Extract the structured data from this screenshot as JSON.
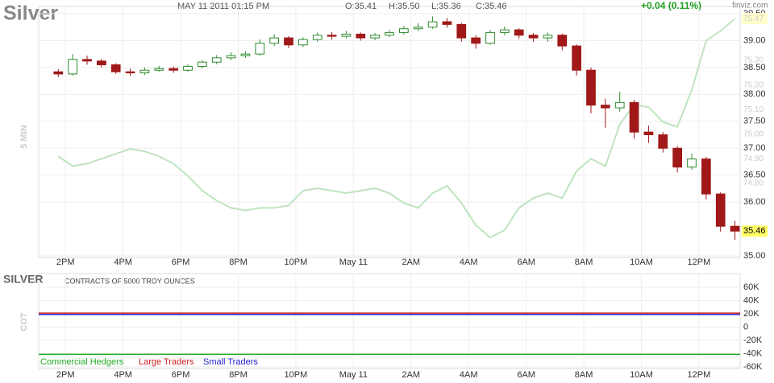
{
  "header": {
    "symbol": "Silver",
    "datetime": "MAY 11 2011 01:15 PM",
    "open": "O:35.41",
    "high": "H:35.50",
    "low": "L:35.36",
    "close": "C:35.46",
    "change": "+0.04 (0.11%)",
    "source": "finviz.com",
    "timeframe": "5 MIN"
  },
  "chart_data": [
    {
      "type": "candlestick",
      "x": [
        13.75,
        14.25,
        14.75,
        15.25,
        15.75,
        16.25,
        16.75,
        17.25,
        17.75,
        18.25,
        18.75,
        19.25,
        19.75,
        20.25,
        20.75,
        21.25,
        21.75,
        22.25,
        22.75,
        23.25,
        23.75,
        24.25,
        24.75,
        25.25,
        25.75,
        26.25,
        26.75,
        27.25,
        27.75,
        28.25,
        28.75,
        29.25,
        29.75,
        30.25,
        30.75,
        31.25,
        31.75,
        32.25,
        32.75,
        33.25,
        33.75,
        34.25,
        34.75,
        35.25,
        35.75,
        36.25,
        36.75,
        37.25
      ],
      "open": [
        38.42,
        38.38,
        38.65,
        38.62,
        38.55,
        38.42,
        38.4,
        38.45,
        38.48,
        38.45,
        38.52,
        38.6,
        38.68,
        38.72,
        38.75,
        38.95,
        39.05,
        38.92,
        39.02,
        39.1,
        39.08,
        39.12,
        39.05,
        39.1,
        39.15,
        39.22,
        39.25,
        39.35,
        39.3,
        39.05,
        38.95,
        39.15,
        39.2,
        39.1,
        39.05,
        39.1,
        38.9,
        38.45,
        37.8,
        37.75,
        37.85,
        37.3,
        37.25,
        37.0,
        36.65,
        36.8,
        36.15,
        35.55
      ],
      "high": [
        38.47,
        38.75,
        38.72,
        38.66,
        38.58,
        38.48,
        38.5,
        38.53,
        38.52,
        38.56,
        38.64,
        38.73,
        38.78,
        38.8,
        39.02,
        39.12,
        39.08,
        39.06,
        39.15,
        39.16,
        39.18,
        39.15,
        39.14,
        39.2,
        39.27,
        39.32,
        39.45,
        39.42,
        39.33,
        39.1,
        39.2,
        39.26,
        39.23,
        39.14,
        39.15,
        39.13,
        38.93,
        38.5,
        37.92,
        38.05,
        37.9,
        37.42,
        37.3,
        37.04,
        36.9,
        36.84,
        36.18,
        35.65
      ],
      "low": [
        38.32,
        38.35,
        38.55,
        38.5,
        38.38,
        38.34,
        38.36,
        38.42,
        38.4,
        38.42,
        38.48,
        38.56,
        38.64,
        38.68,
        38.72,
        38.9,
        38.86,
        38.88,
        38.98,
        39.02,
        39.04,
        39.0,
        39.01,
        39.06,
        39.11,
        39.18,
        39.22,
        39.24,
        38.98,
        38.85,
        38.92,
        39.1,
        39.04,
        38.98,
        38.98,
        38.82,
        38.35,
        37.65,
        37.38,
        37.68,
        37.18,
        37.1,
        36.92,
        36.55,
        36.6,
        36.05,
        35.45,
        35.3
      ],
      "close": [
        38.38,
        38.65,
        38.62,
        38.55,
        38.42,
        38.4,
        38.45,
        38.48,
        38.45,
        38.52,
        38.6,
        38.68,
        38.72,
        38.75,
        38.95,
        39.05,
        38.92,
        39.02,
        39.1,
        39.08,
        39.12,
        39.05,
        39.1,
        39.15,
        39.22,
        39.25,
        39.35,
        39.3,
        39.05,
        38.95,
        39.15,
        39.2,
        39.1,
        39.05,
        39.1,
        38.9,
        38.45,
        37.8,
        37.75,
        37.85,
        37.3,
        37.25,
        37.0,
        36.65,
        36.8,
        36.15,
        35.55,
        35.46
      ],
      "up_color": "#2e8b2e",
      "down_color": "#a01818",
      "overlay": {
        "axis": "y2",
        "color": "#bfe3bf",
        "values": [
          74.91,
          74.87,
          74.88,
          74.9,
          74.92,
          74.94,
          74.93,
          74.91,
          74.88,
          74.83,
          74.77,
          74.73,
          74.7,
          74.69,
          74.7,
          74.7,
          74.71,
          74.77,
          74.78,
          74.77,
          74.76,
          74.77,
          74.78,
          74.76,
          74.72,
          74.7,
          74.76,
          74.79,
          74.72,
          74.63,
          74.58,
          74.61,
          74.7,
          74.74,
          74.76,
          74.74,
          74.85,
          74.9,
          74.87,
          75.04,
          75.12,
          75.11,
          75.05,
          75.03,
          75.18,
          75.38,
          75.42,
          75.47
        ]
      },
      "xlim": [
        13.07,
        37.43
      ],
      "xticks": [
        {
          "value": 14,
          "label": "2PM"
        },
        {
          "value": 16,
          "label": "4PM"
        },
        {
          "value": 18,
          "label": "6PM"
        },
        {
          "value": 20,
          "label": "8PM"
        },
        {
          "value": 22,
          "label": "10PM"
        },
        {
          "value": 24,
          "label": "May 11"
        },
        {
          "value": 26,
          "label": "2AM"
        },
        {
          "value": 28,
          "label": "4AM"
        },
        {
          "value": 30,
          "label": "6AM"
        },
        {
          "value": 32,
          "label": "8AM"
        },
        {
          "value": 34,
          "label": "10AM"
        },
        {
          "value": 36,
          "label": "12PM"
        }
      ],
      "ylim": [
        35.0,
        39.5
      ],
      "yticks": [
        {
          "value": 39.5,
          "label": "39.50"
        },
        {
          "value": 39,
          "label": "39.00"
        },
        {
          "value": 38.5,
          "label": "38.50"
        },
        {
          "value": 38,
          "label": "38.00"
        },
        {
          "value": 37.5,
          "label": "37.50"
        },
        {
          "value": 37,
          "label": "37.00"
        },
        {
          "value": 36.5,
          "label": "36.50"
        },
        {
          "value": 36,
          "label": "36.00"
        },
        {
          "value": 35,
          "label": "35.00"
        }
      ],
      "y2lim": [
        74.505,
        75.49
      ],
      "y2ticks": [
        {
          "value": 75.3,
          "label": "75.30"
        },
        {
          "value": 75.2,
          "label": "75.20"
        },
        {
          "value": 75.1,
          "label": "75.10"
        },
        {
          "value": 75,
          "label": "75.00"
        },
        {
          "value": 74.9,
          "label": "74.90"
        },
        {
          "value": 74.8,
          "label": "74.80"
        }
      ],
      "grid": true
    },
    {
      "type": "line",
      "title": "SILVER",
      "subtitle": "CONTRACTS OF 5000 TROY OUNCES",
      "ylabel": "COT",
      "x": [
        13.07,
        37.43
      ],
      "series": [
        {
          "name": "Commercial Hedgers",
          "color": "#22aa22",
          "values": [
            -41000,
            -41000
          ]
        },
        {
          "name": "Large Traders",
          "color": "#cc2222",
          "values": [
            21000,
            21000
          ]
        },
        {
          "name": "Small Traders",
          "color": "#2222cc",
          "values": [
            19000,
            19000
          ]
        }
      ],
      "xlim": [
        13.07,
        37.43
      ],
      "xticks": [
        {
          "value": 14,
          "label": "2PM"
        },
        {
          "value": 16,
          "label": "4PM"
        },
        {
          "value": 18,
          "label": "6PM"
        },
        {
          "value": 20,
          "label": "8PM"
        },
        {
          "value": 22,
          "label": "10PM"
        },
        {
          "value": 24,
          "label": "May 11"
        },
        {
          "value": 26,
          "label": "2AM"
        },
        {
          "value": 28,
          "label": "4AM"
        },
        {
          "value": 30,
          "label": "6AM"
        },
        {
          "value": 32,
          "label": "8AM"
        },
        {
          "value": 34,
          "label": "10AM"
        },
        {
          "value": 36,
          "label": "12PM"
        }
      ],
      "ylim": [
        -60000,
        60000
      ],
      "yticks": [
        {
          "value": 60000,
          "label": "60K"
        },
        {
          "value": 40000,
          "label": "40K"
        },
        {
          "value": 20000,
          "label": "20K"
        },
        0,
        {
          "value": -20000,
          "label": "-20K"
        },
        {
          "value": -40000,
          "label": "-40K"
        },
        {
          "value": -60000,
          "label": "-60K"
        }
      ],
      "grid": true
    }
  ]
}
